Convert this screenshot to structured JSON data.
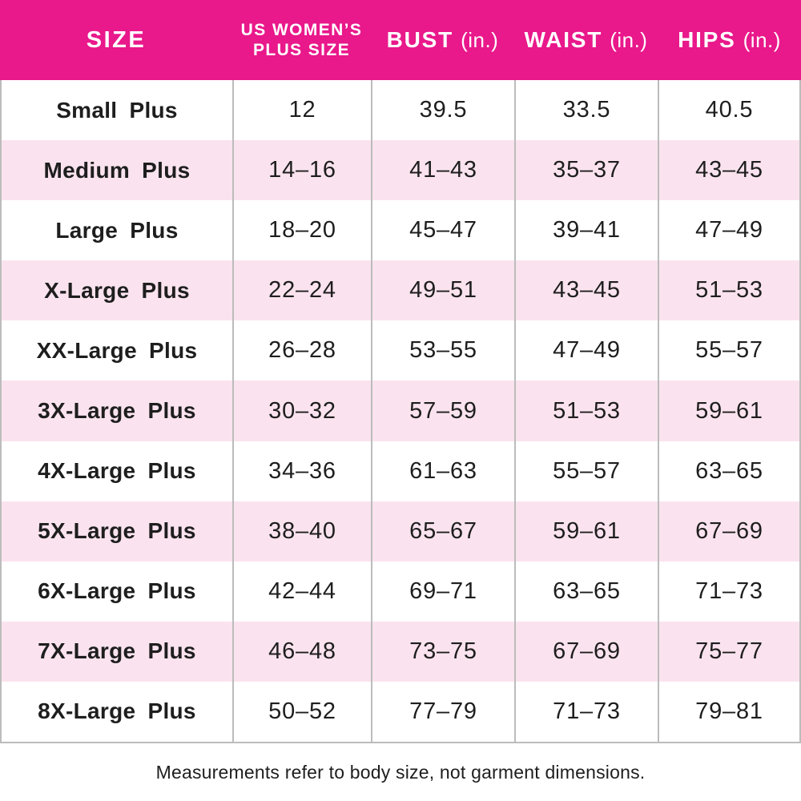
{
  "header": {
    "size": "SIZE",
    "plus_size_line1": "US WOMEN’S",
    "plus_size_line2": "PLUS SIZE",
    "bust": "BUST",
    "bust_unit": "(in.)",
    "waist": "WAIST",
    "waist_unit": "(in.)",
    "hips": "HIPS",
    "hips_unit": "(in.)"
  },
  "footer": {
    "note": "Measurements refer to body size, not garment dimensions."
  },
  "colors": {
    "header_bg": "#e9188b",
    "header_text": "#ffffff",
    "row_pink": "#fae3ee",
    "row_white": "#ffffff",
    "grid_line": "#bcbcbc",
    "text": "#1e1e1e"
  },
  "chart_data": {
    "type": "table",
    "title": "US Women's Plus Size Chart",
    "columns": [
      "SIZE",
      "US WOMEN’S PLUS SIZE",
      "BUST (in.)",
      "WAIST (in.)",
      "HIPS (in.)"
    ],
    "rows": [
      [
        "Small Plus",
        "12",
        "39.5",
        "33.5",
        "40.5"
      ],
      [
        "Medium Plus",
        "14–16",
        "41–43",
        "35–37",
        "43–45"
      ],
      [
        "Large Plus",
        "18–20",
        "45–47",
        "39–41",
        "47–49"
      ],
      [
        "X-Large Plus",
        "22–24",
        "49–51",
        "43–45",
        "51–53"
      ],
      [
        "XX-Large Plus",
        "26–28",
        "53–55",
        "47–49",
        "55–57"
      ],
      [
        "3X-Large Plus",
        "30–32",
        "57–59",
        "51–53",
        "59–61"
      ],
      [
        "4X-Large Plus",
        "34–36",
        "61–63",
        "55–57",
        "63–65"
      ],
      [
        "5X-Large Plus",
        "38–40",
        "65–67",
        "59–61",
        "67–69"
      ],
      [
        "6X-Large Plus",
        "42–44",
        "69–71",
        "63–65",
        "71–73"
      ],
      [
        "7X-Large Plus",
        "46–48",
        "73–75",
        "67–69",
        "75–77"
      ],
      [
        "8X-Large Plus",
        "50–52",
        "77–79",
        "71–73",
        "79–81"
      ]
    ],
    "footnote": "Measurements refer to body size, not garment dimensions.",
    "layout": {
      "alternating_row_shading": true,
      "shaded_rows": "even",
      "grid": "vertical-dividers-only"
    }
  }
}
